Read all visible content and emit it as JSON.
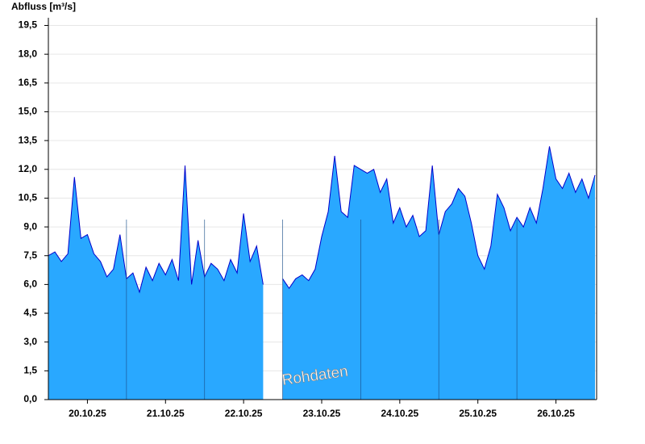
{
  "chart_data": {
    "type": "area",
    "title": "Abfluss [m³/s]",
    "annotation": "Rohdaten",
    "color": "#29a8ff",
    "line_color": "#0000cc",
    "grid": true,
    "xlim": [
      "2025-10-20T00:00",
      "2025-10-27T00:30"
    ],
    "xticks": [
      {
        "value": "2025-10-20T12:00",
        "label": "20.10.25"
      },
      {
        "value": "2025-10-21T12:00",
        "label": "21.10.25"
      },
      {
        "value": "2025-10-22T12:00",
        "label": "22.10.25"
      },
      {
        "value": "2025-10-23T12:00",
        "label": "23.10.25"
      },
      {
        "value": "2025-10-24T12:00",
        "label": "24.10.25"
      },
      {
        "value": "2025-10-25T12:00",
        "label": "25.10.25"
      },
      {
        "value": "2025-10-26T12:00",
        "label": "26.10.25"
      }
    ],
    "ylim": [
      0,
      19.9
    ],
    "yticks": [
      {
        "value": 0,
        "label": "0,0"
      },
      {
        "value": 1.5,
        "label": "1,5"
      },
      {
        "value": 3,
        "label": "3,0"
      },
      {
        "value": 4.5,
        "label": "4,5"
      },
      {
        "value": 6,
        "label": "6,0"
      },
      {
        "value": 7.5,
        "label": "7,5"
      },
      {
        "value": 9,
        "label": "9,0"
      },
      {
        "value": 10.5,
        "label": "10,5"
      },
      {
        "value": 12,
        "label": "12,0"
      },
      {
        "value": 13.5,
        "label": "13,5"
      },
      {
        "value": 15,
        "label": "15,0"
      },
      {
        "value": 16.5,
        "label": "16,5"
      },
      {
        "value": 18,
        "label": "18,0"
      },
      {
        "value": 19.5,
        "label": "19,5"
      }
    ],
    "x": [
      "2025-10-20T00:00",
      "2025-10-20T02:00",
      "2025-10-20T04:00",
      "2025-10-20T06:00",
      "2025-10-20T08:00",
      "2025-10-20T10:00",
      "2025-10-20T12:00",
      "2025-10-20T14:00",
      "2025-10-20T16:00",
      "2025-10-20T18:00",
      "2025-10-20T20:00",
      "2025-10-20T22:00",
      "2025-10-21T00:00",
      "2025-10-21T02:00",
      "2025-10-21T04:00",
      "2025-10-21T06:00",
      "2025-10-21T08:00",
      "2025-10-21T10:00",
      "2025-10-21T12:00",
      "2025-10-21T14:00",
      "2025-10-21T16:00",
      "2025-10-21T18:00",
      "2025-10-21T20:00",
      "2025-10-21T22:00",
      "2025-10-22T00:00",
      "2025-10-22T02:00",
      "2025-10-22T04:00",
      "2025-10-22T06:00",
      "2025-10-22T08:00",
      "2025-10-22T10:00",
      "2025-10-22T12:00",
      "2025-10-22T14:00",
      "2025-10-22T16:00",
      "2025-10-22T18:00",
      "2025-10-22T20:00",
      "2025-10-22T22:00",
      "2025-10-23T00:00",
      "2025-10-23T02:00",
      "2025-10-23T04:00",
      "2025-10-23T06:00",
      "2025-10-23T08:00",
      "2025-10-23T10:00",
      "2025-10-23T12:00",
      "2025-10-23T14:00",
      "2025-10-23T16:00",
      "2025-10-23T18:00",
      "2025-10-23T20:00",
      "2025-10-23T22:00",
      "2025-10-24T00:00",
      "2025-10-24T02:00",
      "2025-10-24T04:00",
      "2025-10-24T06:00",
      "2025-10-24T08:00",
      "2025-10-24T10:00",
      "2025-10-24T12:00",
      "2025-10-24T14:00",
      "2025-10-24T16:00",
      "2025-10-24T18:00",
      "2025-10-24T20:00",
      "2025-10-24T22:00",
      "2025-10-25T00:00",
      "2025-10-25T02:00",
      "2025-10-25T04:00",
      "2025-10-25T06:00",
      "2025-10-25T08:00",
      "2025-10-25T10:00",
      "2025-10-25T12:00",
      "2025-10-25T14:00",
      "2025-10-25T16:00",
      "2025-10-25T18:00",
      "2025-10-25T20:00",
      "2025-10-25T22:00",
      "2025-10-26T00:00",
      "2025-10-26T02:00",
      "2025-10-26T04:00",
      "2025-10-26T06:00",
      "2025-10-26T08:00",
      "2025-10-26T10:00",
      "2025-10-26T12:00",
      "2025-10-26T14:00",
      "2025-10-26T16:00",
      "2025-10-26T18:00",
      "2025-10-26T20:00",
      "2025-10-26T22:00",
      "2025-10-27T00:00"
    ],
    "values": [
      7.5,
      7.7,
      7.2,
      7.6,
      11.6,
      8.4,
      8.6,
      7.6,
      7.2,
      6.4,
      6.8,
      8.6,
      6.3,
      6.6,
      5.6,
      6.9,
      6.2,
      7.1,
      6.5,
      7.3,
      6.2,
      12.2,
      6.0,
      8.3,
      6.4,
      7.1,
      6.8,
      6.2,
      7.3,
      6.6,
      9.7,
      7.2,
      8.0,
      6.0,
      null,
      null,
      6.3,
      5.8,
      6.3,
      6.5,
      6.2,
      6.8,
      8.5,
      9.8,
      12.7,
      9.8,
      9.5,
      12.2,
      12.0,
      11.8,
      12.0,
      10.8,
      11.5,
      9.2,
      10.0,
      9.0,
      9.6,
      8.5,
      8.8,
      12.2,
      8.6,
      9.8,
      10.2,
      11.0,
      10.6,
      9.2,
      7.5,
      6.8,
      8.0,
      10.7,
      10.0,
      8.8,
      9.5,
      9.0,
      10.0,
      9.2,
      11.0,
      13.2,
      11.5,
      11.0,
      11.8,
      10.8,
      11.5,
      10.5,
      11.7
    ]
  }
}
